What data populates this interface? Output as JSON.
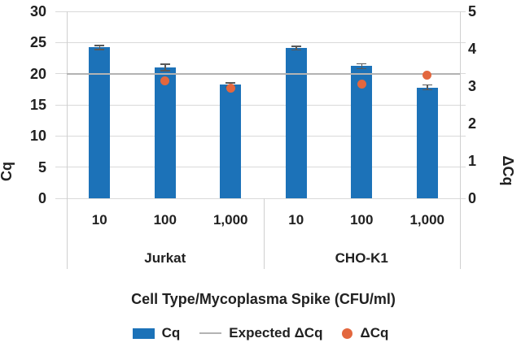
{
  "chart_data": {
    "type": "bar",
    "title": "",
    "xlabel": "Cell Type/Mycoplasma Spike (CFU/ml)",
    "grid": true,
    "legend_position": "bottom",
    "left_axis": {
      "label": "Cq",
      "min": 0,
      "max": 30,
      "ticks": [
        30,
        25,
        20,
        15,
        10,
        5,
        0
      ]
    },
    "right_axis": {
      "label": "ΔCq",
      "min": 0,
      "max": 5,
      "ticks": [
        5,
        4,
        3,
        2,
        1,
        0
      ]
    },
    "groups": [
      {
        "name": "Jurkat",
        "categories": [
          "10",
          "100",
          "1,000"
        ]
      },
      {
        "name": "CHO-K1",
        "categories": [
          "10",
          "100",
          "1,000"
        ]
      }
    ],
    "series": [
      {
        "name": "Cq",
        "type": "bar",
        "color": "#1c72b8",
        "values": [
          24.2,
          21.0,
          18.2,
          24.1,
          21.2,
          17.8
        ],
        "errors": [
          0.3,
          0.5,
          0.3,
          0.3,
          0.4,
          0.4
        ]
      },
      {
        "name": "Expected ΔCq",
        "type": "line",
        "color": "#b3b3b3",
        "value": 3.33
      },
      {
        "name": "ΔCq",
        "type": "point",
        "color": "#e3673e",
        "values": [
          null,
          3.15,
          2.95,
          null,
          3.05,
          3.3
        ]
      }
    ]
  },
  "colors": {
    "bar_blue": "#1c72b8",
    "point_orange": "#e3673e",
    "expected_line_gray": "#b3b3b3",
    "gridline_gray": "#d9d9d9",
    "error_bar_gray": "#595959",
    "text": "#212121"
  }
}
